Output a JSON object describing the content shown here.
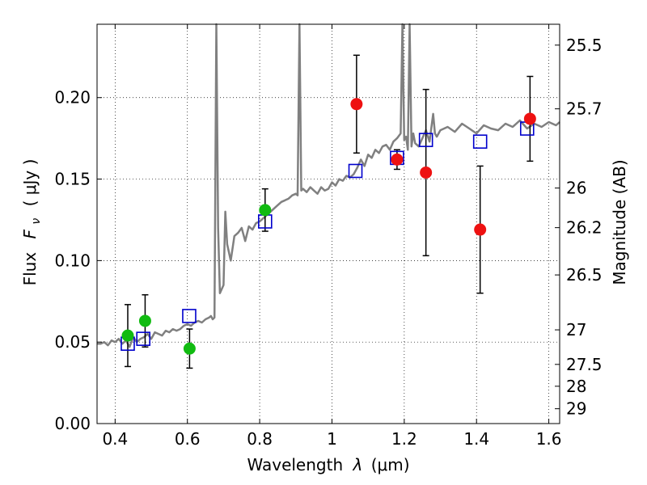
{
  "chart_data": {
    "type": "scatter",
    "xlabel_main": "Wavelength",
    "xlabel_symbol": "λ",
    "xlabel_units": "(μm)",
    "ylabel_main": "Flux",
    "ylabel_symbol": "F",
    "ylabel_subscript": "ν",
    "ylabel_units": "( μJy )",
    "y2label": "Magnitude (AB)",
    "xlim": [
      0.35,
      1.63
    ],
    "ylim": [
      0.0,
      0.245
    ],
    "grid": true,
    "x_ticks": [
      {
        "value": 0.4,
        "label": "0.4"
      },
      {
        "value": 0.6,
        "label": "0.6"
      },
      {
        "value": 0.8,
        "label": "0.8"
      },
      {
        "value": 1.0,
        "label": "1"
      },
      {
        "value": 1.2,
        "label": "1.2"
      },
      {
        "value": 1.4,
        "label": "1.4"
      },
      {
        "value": 1.6,
        "label": "1.6"
      }
    ],
    "y_ticks": [
      {
        "value": 0.0,
        "label": "0.00"
      },
      {
        "value": 0.05,
        "label": "0.05"
      },
      {
        "value": 0.1,
        "label": "0.10"
      },
      {
        "value": 0.15,
        "label": "0.15"
      },
      {
        "value": 0.2,
        "label": "0.20"
      }
    ],
    "y2_ticks": [
      {
        "flux": 0.2322,
        "label": "25.5"
      },
      {
        "flux": 0.1931,
        "label": "25.7"
      },
      {
        "flux": 0.1445,
        "label": "26"
      },
      {
        "flux": 0.1202,
        "label": "26.2"
      },
      {
        "flux": 0.0912,
        "label": "26.5"
      },
      {
        "flux": 0.0575,
        "label": "27"
      },
      {
        "flux": 0.0363,
        "label": "27.5"
      },
      {
        "flux": 0.0229,
        "label": "28"
      },
      {
        "flux": 0.0091,
        "label": "29"
      }
    ],
    "series": [
      {
        "name": "model spectrum",
        "kind": "line",
        "color": "#808080",
        "x": [
          0.35,
          0.36,
          0.37,
          0.38,
          0.39,
          0.4,
          0.41,
          0.42,
          0.43,
          0.44,
          0.45,
          0.46,
          0.47,
          0.48,
          0.49,
          0.5,
          0.51,
          0.52,
          0.53,
          0.54,
          0.55,
          0.56,
          0.57,
          0.58,
          0.59,
          0.6,
          0.61,
          0.62,
          0.63,
          0.64,
          0.65,
          0.66,
          0.665,
          0.67,
          0.675,
          0.68,
          0.685,
          0.69,
          0.7,
          0.705,
          0.71,
          0.72,
          0.73,
          0.74,
          0.75,
          0.76,
          0.77,
          0.78,
          0.79,
          0.8,
          0.81,
          0.82,
          0.83,
          0.84,
          0.85,
          0.86,
          0.87,
          0.88,
          0.89,
          0.9,
          0.905,
          0.91,
          0.915,
          0.92,
          0.93,
          0.94,
          0.95,
          0.96,
          0.97,
          0.98,
          0.99,
          1.0,
          1.01,
          1.02,
          1.03,
          1.04,
          1.05,
          1.06,
          1.07,
          1.08,
          1.09,
          1.1,
          1.11,
          1.12,
          1.13,
          1.14,
          1.15,
          1.16,
          1.17,
          1.18,
          1.19,
          1.195,
          1.2,
          1.205,
          1.21,
          1.215,
          1.22,
          1.225,
          1.23,
          1.24,
          1.25,
          1.26,
          1.27,
          1.28,
          1.285,
          1.29,
          1.3,
          1.32,
          1.34,
          1.36,
          1.38,
          1.4,
          1.42,
          1.44,
          1.46,
          1.48,
          1.5,
          1.52,
          1.54,
          1.56,
          1.58,
          1.6,
          1.62,
          1.63
        ],
        "y": [
          0.049,
          0.049,
          0.05,
          0.048,
          0.051,
          0.05,
          0.052,
          0.049,
          0.051,
          0.047,
          0.053,
          0.05,
          0.052,
          0.053,
          0.055,
          0.052,
          0.056,
          0.055,
          0.054,
          0.057,
          0.056,
          0.058,
          0.057,
          0.058,
          0.06,
          0.061,
          0.06,
          0.062,
          0.063,
          0.062,
          0.064,
          0.065,
          0.066,
          0.064,
          0.065,
          0.245,
          0.12,
          0.08,
          0.085,
          0.13,
          0.11,
          0.1,
          0.115,
          0.117,
          0.12,
          0.112,
          0.121,
          0.119,
          0.123,
          0.124,
          0.126,
          0.128,
          0.13,
          0.132,
          0.134,
          0.136,
          0.137,
          0.138,
          0.14,
          0.141,
          0.14,
          0.245,
          0.143,
          0.144,
          0.142,
          0.145,
          0.143,
          0.141,
          0.145,
          0.143,
          0.144,
          0.148,
          0.146,
          0.15,
          0.149,
          0.152,
          0.151,
          0.153,
          0.157,
          0.162,
          0.158,
          0.165,
          0.163,
          0.168,
          0.166,
          0.17,
          0.171,
          0.168,
          0.173,
          0.175,
          0.178,
          0.245,
          0.174,
          0.176,
          0.168,
          0.245,
          0.17,
          0.178,
          0.172,
          0.17,
          0.175,
          0.18,
          0.173,
          0.19,
          0.178,
          0.176,
          0.18,
          0.182,
          0.179,
          0.184,
          0.181,
          0.178,
          0.183,
          0.181,
          0.18,
          0.184,
          0.182,
          0.186,
          0.181,
          0.184,
          0.182,
          0.185,
          0.183,
          0.185
        ]
      },
      {
        "name": "model photometry",
        "kind": "open-square",
        "color": "#0000cc",
        "x": [
          0.435,
          0.478,
          0.605,
          0.815,
          1.065,
          1.18,
          1.26,
          1.41,
          1.54
        ],
        "y": [
          0.049,
          0.052,
          0.066,
          0.124,
          0.155,
          0.163,
          0.174,
          0.173,
          0.181
        ]
      },
      {
        "name": "optical observations",
        "kind": "filled-circle",
        "color": "#11bb11",
        "x": [
          0.435,
          0.483,
          0.606,
          0.815
        ],
        "y": [
          0.054,
          0.063,
          0.046,
          0.131
        ],
        "yerr": [
          0.019,
          0.016,
          0.012,
          0.013
        ]
      },
      {
        "name": "near-IR observations",
        "kind": "filled-circle",
        "color": "#ee1111",
        "x": [
          1.068,
          1.18,
          1.26,
          1.41,
          1.548
        ],
        "y": [
          0.196,
          0.162,
          0.154,
          0.119,
          0.187
        ],
        "yerr": [
          0.03,
          0.006,
          0.051,
          0.039,
          0.026
        ]
      }
    ]
  }
}
